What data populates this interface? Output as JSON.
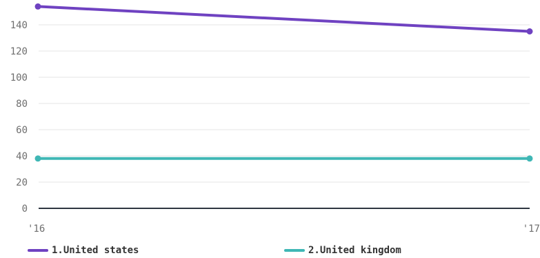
{
  "chart_data": {
    "type": "line",
    "x": [
      "'16",
      "'17"
    ],
    "y_ticks": [
      0,
      20,
      40,
      60,
      80,
      100,
      120,
      140
    ],
    "ylim": [
      0,
      160
    ],
    "grid": true,
    "legend_position": "bottom",
    "series": [
      {
        "name": "1.United states",
        "values": [
          154,
          135
        ],
        "color": "#6f42c1"
      },
      {
        "name": "2.United kingdom",
        "values": [
          38,
          38
        ],
        "color": "#3fb7b5"
      }
    ],
    "title": "",
    "xlabel": "",
    "ylabel": ""
  }
}
